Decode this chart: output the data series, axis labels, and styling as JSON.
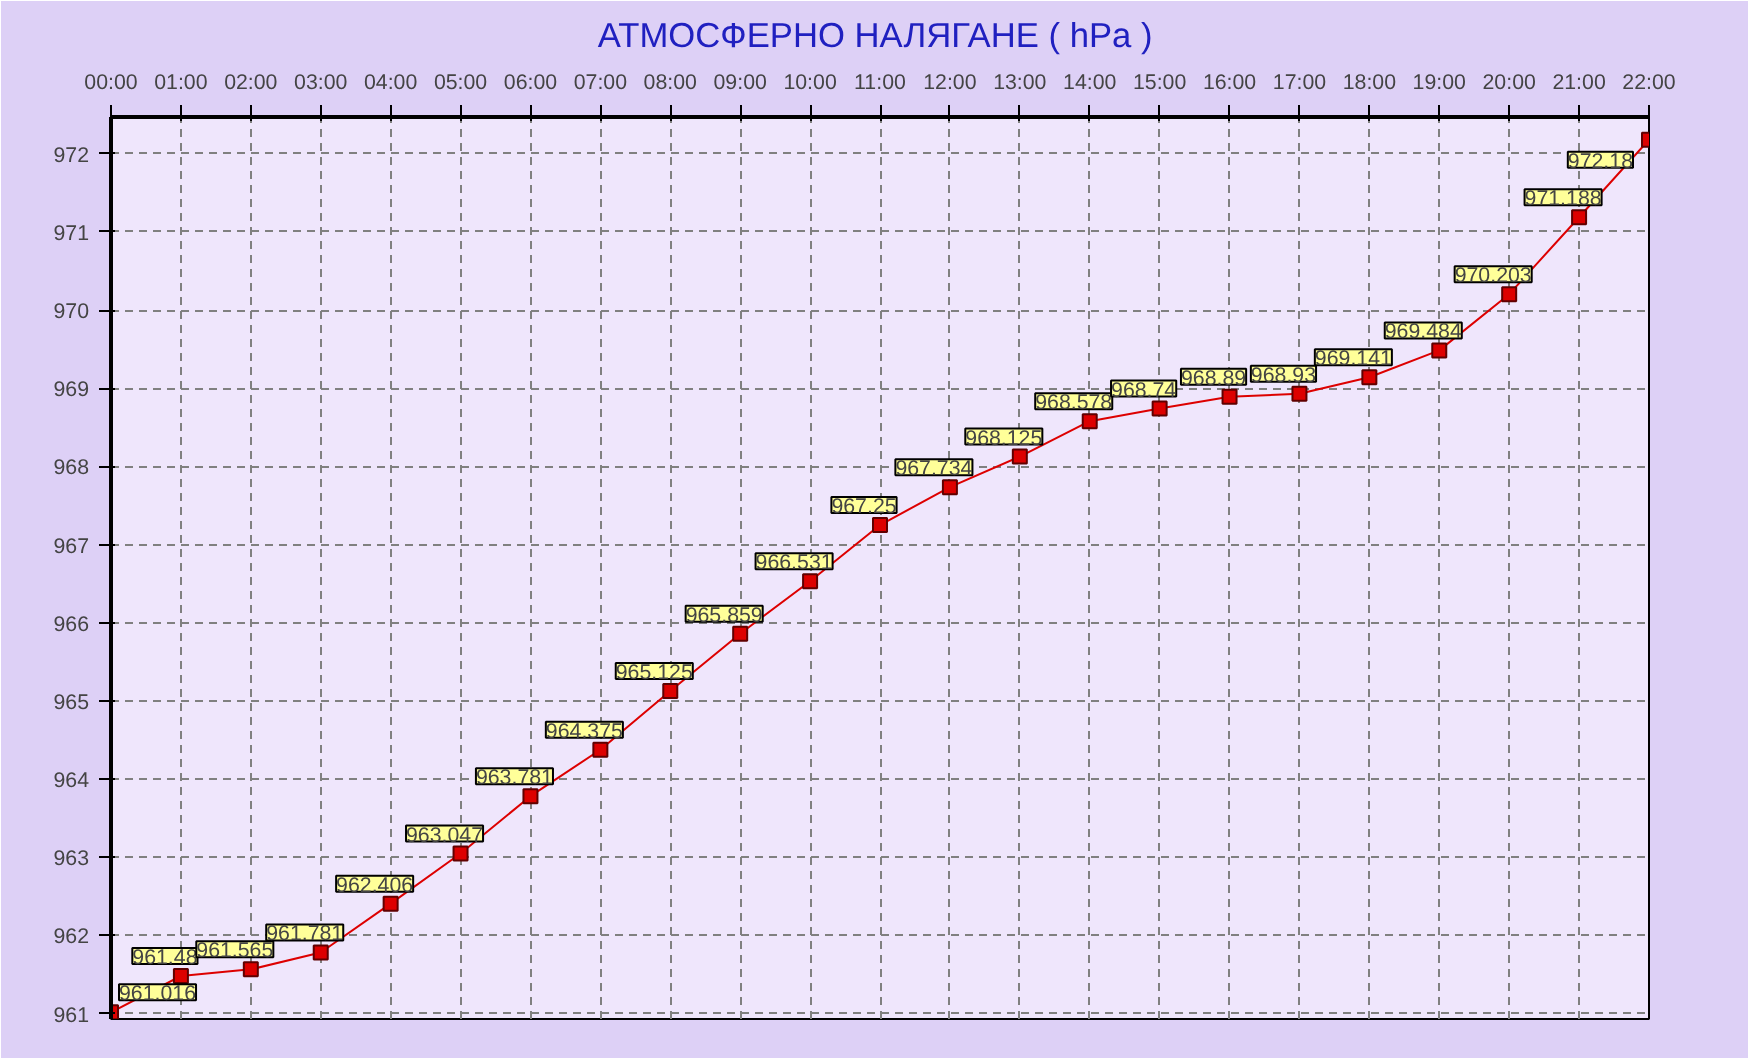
{
  "chart_data": {
    "type": "line",
    "title": "АТМОСФЕРНО НАЛЯГАНЕ  ( hPa )",
    "x": [
      0,
      1,
      2,
      3,
      4,
      5,
      6,
      7,
      8,
      9,
      10,
      11,
      12,
      13,
      14,
      15,
      16,
      17,
      18,
      19,
      20,
      21,
      22
    ],
    "xlim": [
      0,
      22
    ],
    "xticks": [
      {
        "value": 0,
        "label": "00:00"
      },
      {
        "value": 1,
        "label": "01:00"
      },
      {
        "value": 2,
        "label": "02:00"
      },
      {
        "value": 3,
        "label": "03:00"
      },
      {
        "value": 4,
        "label": "04:00"
      },
      {
        "value": 5,
        "label": "05:00"
      },
      {
        "value": 6,
        "label": "06:00"
      },
      {
        "value": 7,
        "label": "07:00"
      },
      {
        "value": 8,
        "label": "08:00"
      },
      {
        "value": 9,
        "label": "09:00"
      },
      {
        "value": 10,
        "label": "10:00"
      },
      {
        "value": 11,
        "label": "11:00"
      },
      {
        "value": 12,
        "label": "12:00"
      },
      {
        "value": 13,
        "label": "13:00"
      },
      {
        "value": 14,
        "label": "14:00"
      },
      {
        "value": 15,
        "label": "15:00"
      },
      {
        "value": 16,
        "label": "16:00"
      },
      {
        "value": 17,
        "label": "17:00"
      },
      {
        "value": 18,
        "label": "18:00"
      },
      {
        "value": 19,
        "label": "19:00"
      },
      {
        "value": 20,
        "label": "20:00"
      },
      {
        "value": 21,
        "label": "21:00"
      },
      {
        "value": 22,
        "label": "22:00"
      }
    ],
    "ylim": [
      960.93,
      972.47
    ],
    "yticks": [
      961,
      962,
      963,
      964,
      965,
      966,
      967,
      968,
      969,
      970,
      971,
      972
    ],
    "series": [
      {
        "color": "#dd0000",
        "values": [
          961.016,
          961.48,
          961.565,
          961.781,
          962.406,
          963.047,
          963.781,
          964.375,
          965.125,
          965.859,
          966.531,
          967.25,
          967.734,
          968.125,
          968.578,
          968.74,
          968.89,
          968.93,
          969.141,
          969.484,
          970.203,
          971.188,
          972.18
        ]
      }
    ],
    "data_labels": true,
    "grid": true,
    "marker": "square",
    "line_style": "solid"
  }
}
